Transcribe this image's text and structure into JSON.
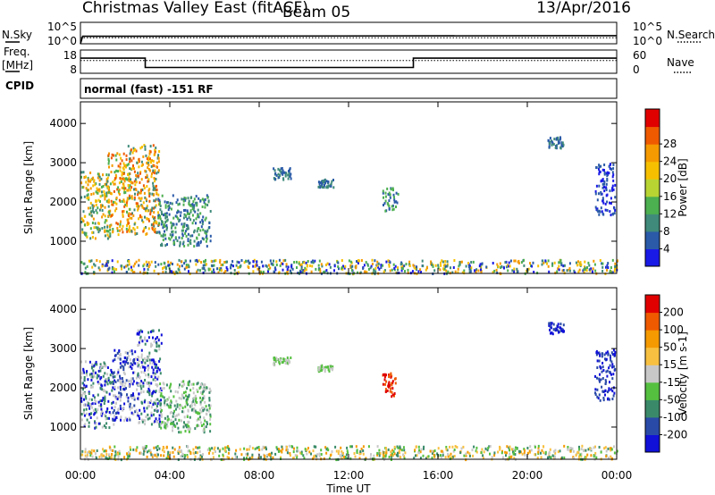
{
  "header": {
    "title": "Christmas Valley East (fitACF)",
    "beam": "Beam 05",
    "date": "13/Apr/2016"
  },
  "side_labels": {
    "nsky": "N.Sky",
    "freq_line1": "Freq.",
    "freq_line2": "[MHz]",
    "cpid": "CPID",
    "nsearch": "N.Search",
    "nave": "Nave"
  },
  "cpid_text": "normal (fast) -151 RF",
  "chart_data": [
    {
      "type": "line",
      "name": "noise",
      "yticks_left": [
        "10^5",
        "10^0"
      ],
      "yticks_right": [
        "10^5",
        "10^0"
      ],
      "series": [
        {
          "name": "N.Sky",
          "style": "solid",
          "x": [
            0.0,
            0.1,
            24.0
          ],
          "y": [
            0,
            0.35,
            0.38
          ]
        },
        {
          "name": "N.Search",
          "style": "dotted",
          "x": [
            0.0,
            24.0
          ],
          "y": [
            0.28,
            0.28
          ]
        }
      ]
    },
    {
      "type": "line",
      "name": "frequency-nave",
      "yticks_left": [
        "18",
        "8"
      ],
      "yticks_right": [
        "60",
        "0"
      ],
      "series": [
        {
          "name": "Freq",
          "style": "solid",
          "x": [
            0.0,
            2.9,
            2.9,
            14.9,
            14.9,
            24.0
          ],
          "y": [
            14.5,
            14.5,
            10.5,
            10.5,
            14.5,
            14.5
          ]
        },
        {
          "name": "Nave",
          "style": "dotted",
          "x": [
            0.0,
            24.0
          ],
          "y": [
            13.5,
            13.5
          ]
        }
      ]
    },
    {
      "type": "heatmap",
      "name": "power",
      "xlabel": "",
      "ylabel": "Slant Range [km]",
      "xlim": [
        0,
        24
      ],
      "ylim": [
        180,
        4550
      ],
      "yticks": [
        "1000",
        "2000",
        "3000",
        "4000"
      ],
      "colorbar": {
        "label": "Power [dB]",
        "ticks": [
          "4",
          "8",
          "12",
          "16",
          "20",
          "24",
          "28"
        ],
        "colors": [
          "#1a1ae6",
          "#2a5aa8",
          "#3f8a7a",
          "#4caf50",
          "#b8d433",
          "#f6c000",
          "#f59a00",
          "#ef5a00",
          "#e00000"
        ]
      },
      "clusters": [
        {
          "x0": 0.0,
          "x1": 1.3,
          "y0": 1100,
          "y1": 2800,
          "colors": [
            "#3f8a7a",
            "#4caf50",
            "#f6c000",
            "#f59a00"
          ]
        },
        {
          "x0": 1.2,
          "x1": 2.2,
          "y0": 1200,
          "y1": 3300,
          "colors": [
            "#f6c000",
            "#f59a00",
            "#4caf50",
            "#ef5a00"
          ]
        },
        {
          "x0": 2.1,
          "x1": 3.5,
          "y0": 1200,
          "y1": 3500,
          "colors": [
            "#f59a00",
            "#f6c000",
            "#ef5a00",
            "#3f8a7a"
          ]
        },
        {
          "x0": 3.4,
          "x1": 5.8,
          "y0": 900,
          "y1": 2200,
          "colors": [
            "#2a5aa8",
            "#3f8a7a",
            "#4caf50"
          ]
        },
        {
          "x0": 8.6,
          "x1": 9.4,
          "y0": 2600,
          "y1": 2900,
          "colors": [
            "#2a5aa8",
            "#3f8a7a"
          ]
        },
        {
          "x0": 10.6,
          "x1": 11.3,
          "y0": 2400,
          "y1": 2600,
          "colors": [
            "#2a5aa8",
            "#3f8a7a"
          ]
        },
        {
          "x0": 13.5,
          "x1": 14.2,
          "y0": 1800,
          "y1": 2400,
          "colors": [
            "#2a5aa8",
            "#4caf50"
          ]
        },
        {
          "x0": 20.9,
          "x1": 21.6,
          "y0": 3400,
          "y1": 3700,
          "colors": [
            "#2a5aa8",
            "#3f8a7a"
          ]
        },
        {
          "x0": 23.0,
          "x1": 23.9,
          "y0": 1700,
          "y1": 3000,
          "colors": [
            "#2a5aa8",
            "#1a1ae6"
          ]
        },
        {
          "x0": 0.0,
          "x1": 24.0,
          "y0": 200,
          "y1": 550,
          "colors": [
            "#1a1ae6",
            "#2a5aa8",
            "#3f8a7a",
            "#4caf50",
            "#f6c000",
            "#f59a00"
          ]
        }
      ]
    },
    {
      "type": "heatmap",
      "name": "velocity",
      "xlabel": "Time UT",
      "ylabel": "Slant Range [km]",
      "xlim": [
        0,
        24
      ],
      "ylim": [
        180,
        4550
      ],
      "yticks": [
        "1000",
        "2000",
        "3000",
        "4000"
      ],
      "xticks": [
        "00:00",
        "04:00",
        "08:00",
        "12:00",
        "16:00",
        "20:00",
        "00:00"
      ],
      "colorbar": {
        "label": "Velocity [m s-1]",
        "ticks": [
          "200",
          "100",
          "50",
          "15",
          "-15",
          "-50",
          "-100",
          "-200"
        ],
        "colors": [
          "#1010d8",
          "#2a4aa8",
          "#3a8a6a",
          "#55c040",
          "#c8c8c8",
          "#f8c040",
          "#f59a00",
          "#ef5a00",
          "#e00000"
        ]
      },
      "clusters": [
        {
          "x0": 0.0,
          "x1": 1.5,
          "y0": 1000,
          "y1": 2700,
          "colors": [
            "#1010d8",
            "#c8c8c8",
            "#3a8a6a"
          ]
        },
        {
          "x0": 1.4,
          "x1": 2.6,
          "y0": 1200,
          "y1": 3000,
          "colors": [
            "#1010d8",
            "#c8c8c8",
            "#2a4aa8"
          ]
        },
        {
          "x0": 2.5,
          "x1": 3.6,
          "y0": 1100,
          "y1": 3500,
          "colors": [
            "#1010d8",
            "#c8c8c8",
            "#3a8a6a"
          ]
        },
        {
          "x0": 3.5,
          "x1": 5.8,
          "y0": 900,
          "y1": 2200,
          "colors": [
            "#c8c8c8",
            "#3a8a6a",
            "#55c040"
          ]
        },
        {
          "x0": 8.6,
          "x1": 9.4,
          "y0": 2600,
          "y1": 2800,
          "colors": [
            "#55c040",
            "#c8c8c8"
          ]
        },
        {
          "x0": 10.6,
          "x1": 11.3,
          "y0": 2450,
          "y1": 2600,
          "colors": [
            "#55c040",
            "#c8c8c8"
          ]
        },
        {
          "x0": 13.5,
          "x1": 14.1,
          "y0": 1800,
          "y1": 2400,
          "colors": [
            "#e00000",
            "#ef5a00"
          ]
        },
        {
          "x0": 20.9,
          "x1": 21.6,
          "y0": 3400,
          "y1": 3700,
          "colors": [
            "#1010d8",
            "#2a4aa8"
          ]
        },
        {
          "x0": 23.0,
          "x1": 23.9,
          "y0": 1700,
          "y1": 3000,
          "colors": [
            "#1010d8",
            "#2a4aa8"
          ]
        },
        {
          "x0": 0.0,
          "x1": 24.0,
          "y0": 200,
          "y1": 550,
          "colors": [
            "#c8c8c8",
            "#f8c040",
            "#55c040",
            "#3a8a6a",
            "#f59a00"
          ]
        }
      ]
    }
  ]
}
